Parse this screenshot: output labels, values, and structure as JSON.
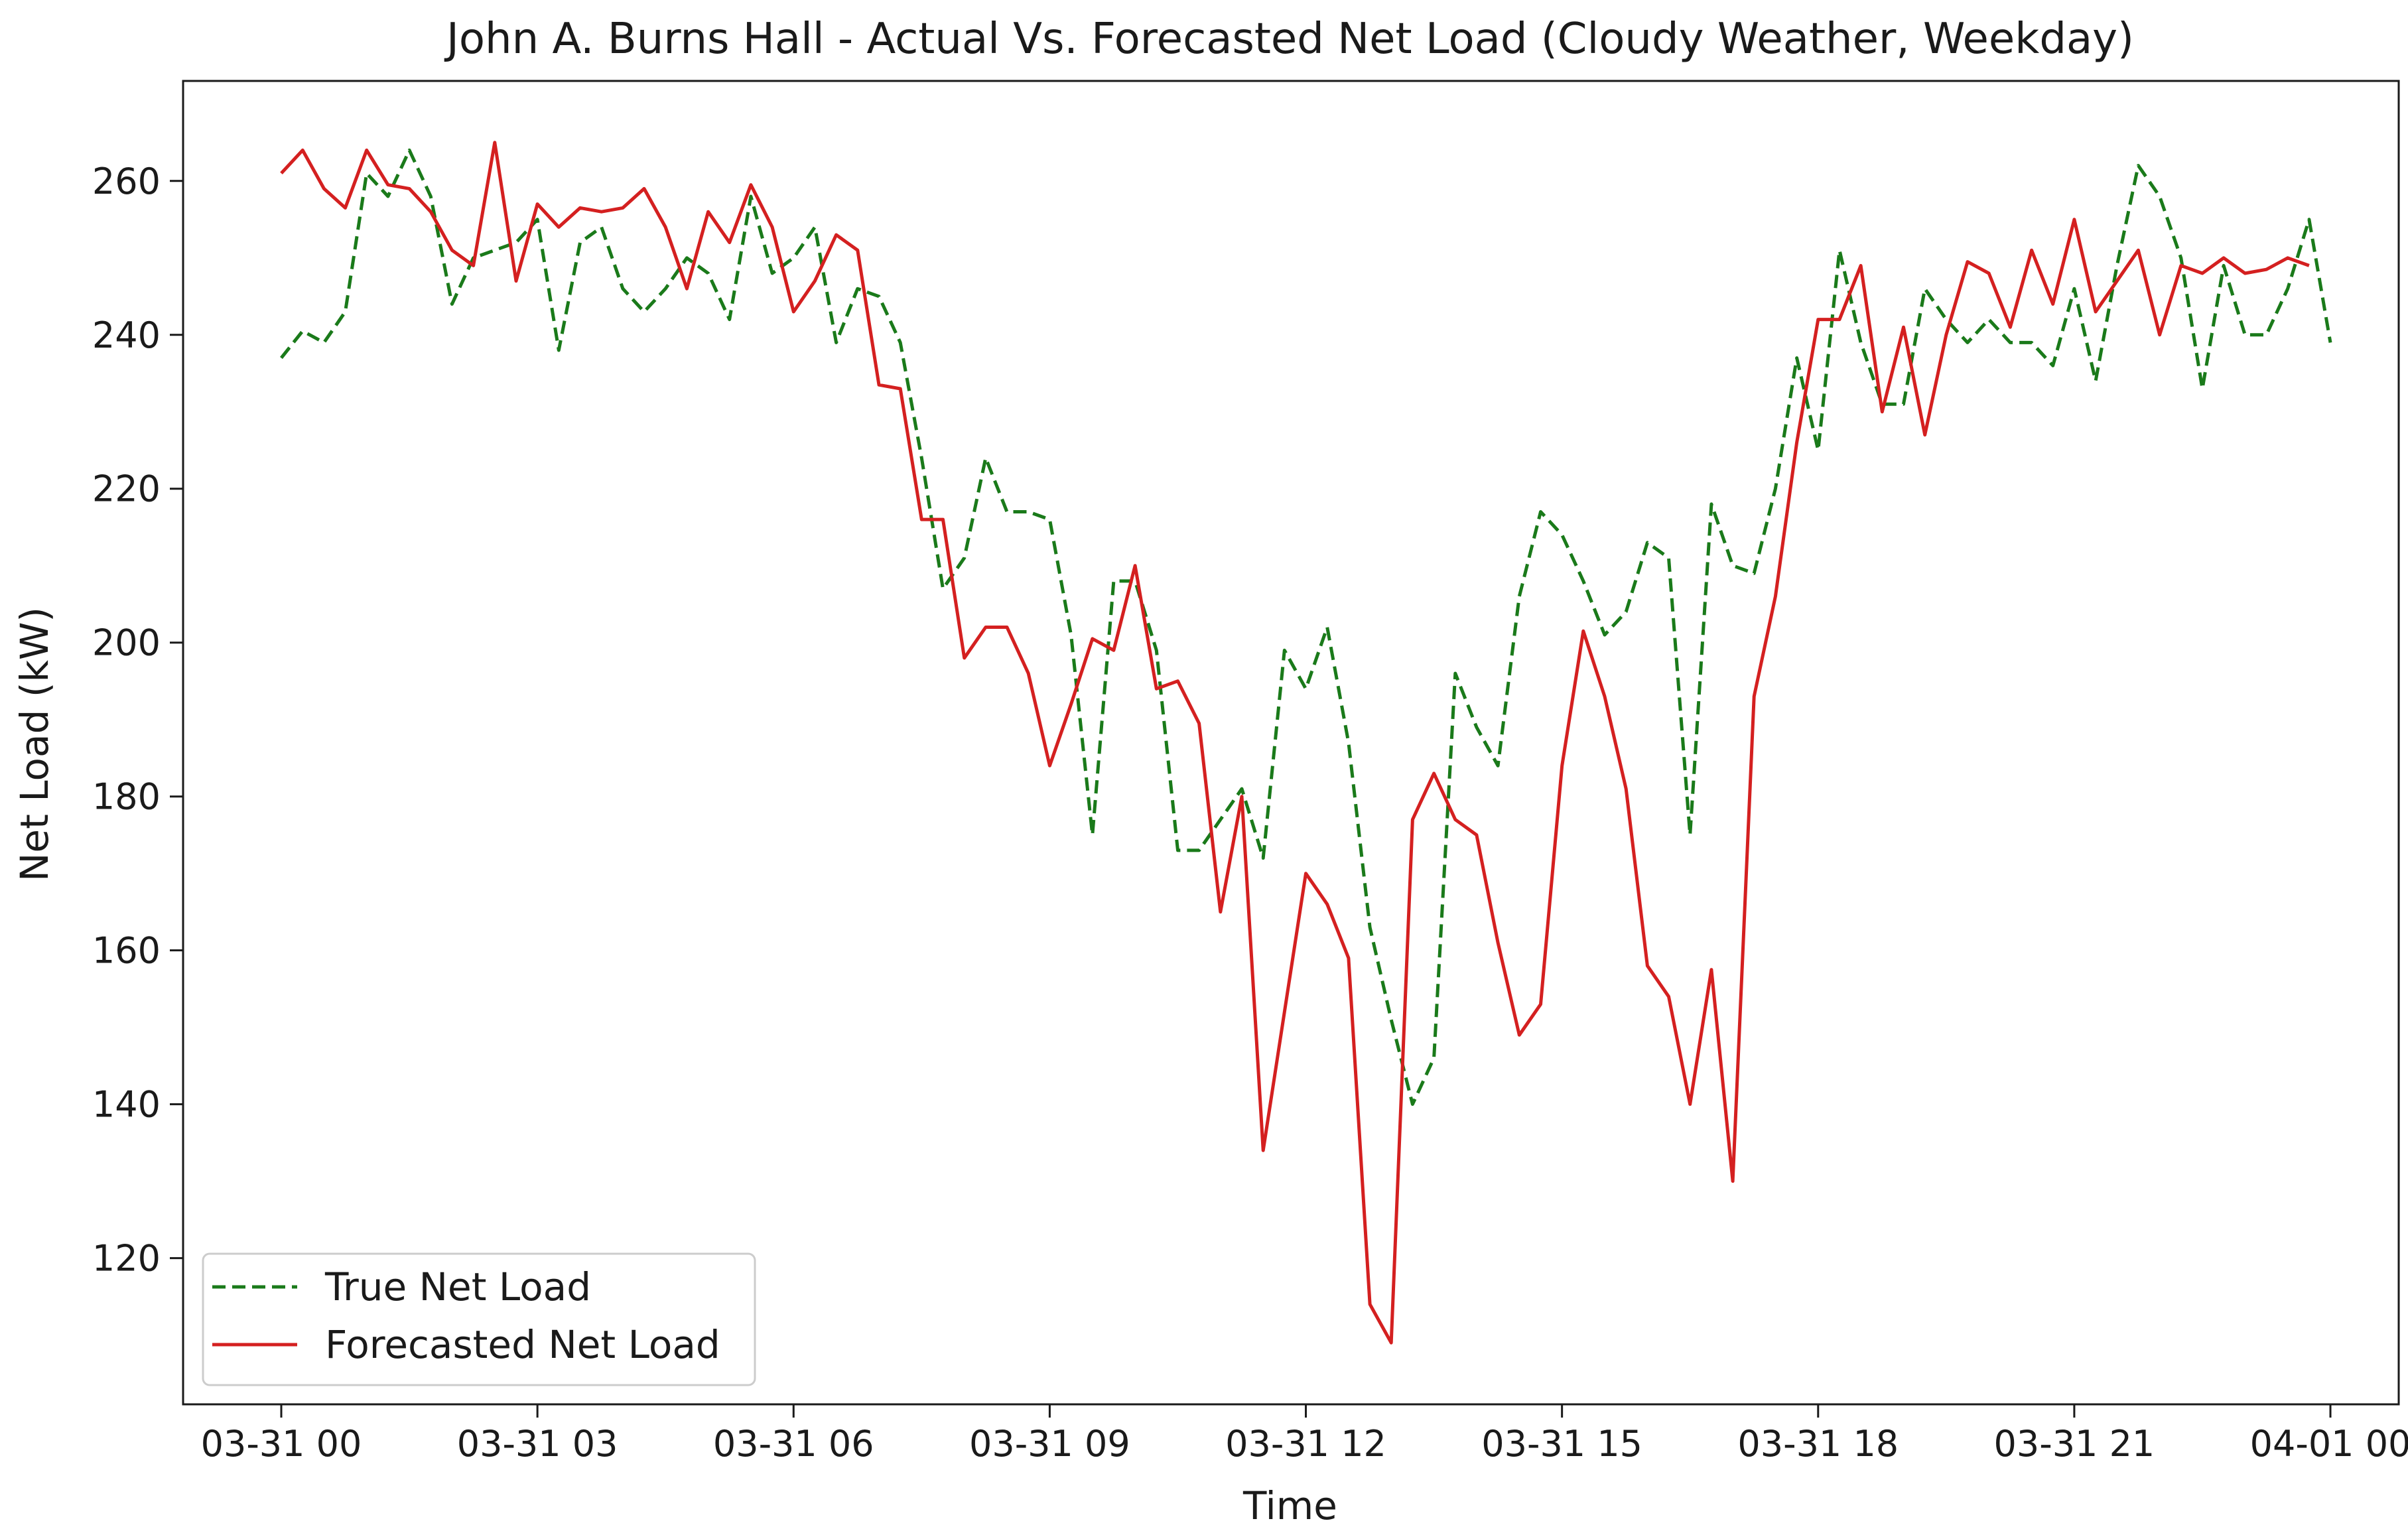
{
  "chart_data": {
    "type": "line",
    "title": "John A. Burns Hall - Actual Vs. Forecasted Net Load (Cloudy Weather, Weekday)",
    "xlabel": "Time",
    "ylabel": "Net Load (kW)",
    "x_ticks": [
      "03-31 00",
      "03-31 03",
      "03-31 06",
      "03-31 09",
      "03-31 12",
      "03-31 15",
      "03-31 18",
      "03-31 21",
      "04-01 00"
    ],
    "y_ticks": [
      120,
      140,
      160,
      180,
      200,
      220,
      240,
      260
    ],
    "xlim_hours": [
      -1.15,
      24.8
    ],
    "ylim": [
      101,
      273
    ],
    "grid": false,
    "legend_position": "lower-left",
    "x_step_hours": 0.25,
    "series": [
      {
        "name": "True Net Load",
        "color": "#1a7a1a",
        "style": "dashed",
        "values": [
          237,
          240.5,
          239,
          243,
          261,
          258,
          264,
          258,
          244,
          250,
          251,
          252,
          255,
          238,
          252,
          254,
          246,
          243,
          246,
          250,
          248,
          242,
          258,
          248,
          250,
          254,
          239,
          246,
          245,
          239,
          224,
          207,
          211,
          224,
          217,
          217,
          216,
          201,
          175,
          208,
          208,
          199,
          173,
          173,
          177,
          181,
          172,
          199,
          194,
          202,
          187,
          163,
          151,
          140,
          146,
          196,
          189,
          184,
          206,
          217,
          214,
          208,
          201,
          204,
          213,
          211,
          175,
          218,
          210,
          209,
          220,
          237,
          225,
          251,
          239,
          231,
          231,
          246,
          242,
          239,
          242,
          239,
          239,
          236,
          246,
          234,
          249,
          262,
          258,
          250,
          233,
          249,
          240,
          240,
          246,
          255,
          239
        ]
      },
      {
        "name": "Forecasted Net Load",
        "color": "#d42020",
        "style": "solid",
        "values": [
          261,
          264,
          259,
          256.5,
          264,
          259.5,
          259,
          256,
          251,
          249,
          265,
          247,
          257,
          254,
          256.5,
          256,
          256.5,
          259,
          254,
          246,
          256,
          252,
          259.5,
          254,
          243,
          247,
          253,
          251,
          233.5,
          233,
          216,
          216,
          198,
          202,
          202,
          196,
          184,
          192,
          200.5,
          199,
          210,
          194,
          195,
          189.5,
          165,
          180,
          134,
          152,
          170,
          166,
          159,
          114,
          109,
          177,
          183,
          177,
          175,
          161,
          149,
          153,
          184,
          201.5,
          193,
          181,
          158,
          154,
          140,
          157.5,
          130,
          193,
          206,
          226,
          242,
          242,
          249,
          230,
          241,
          227,
          240,
          249.5,
          248,
          241,
          251,
          244,
          255,
          243,
          247,
          251,
          240,
          249,
          248,
          250,
          248,
          248.5,
          250,
          249
        ]
      }
    ]
  }
}
